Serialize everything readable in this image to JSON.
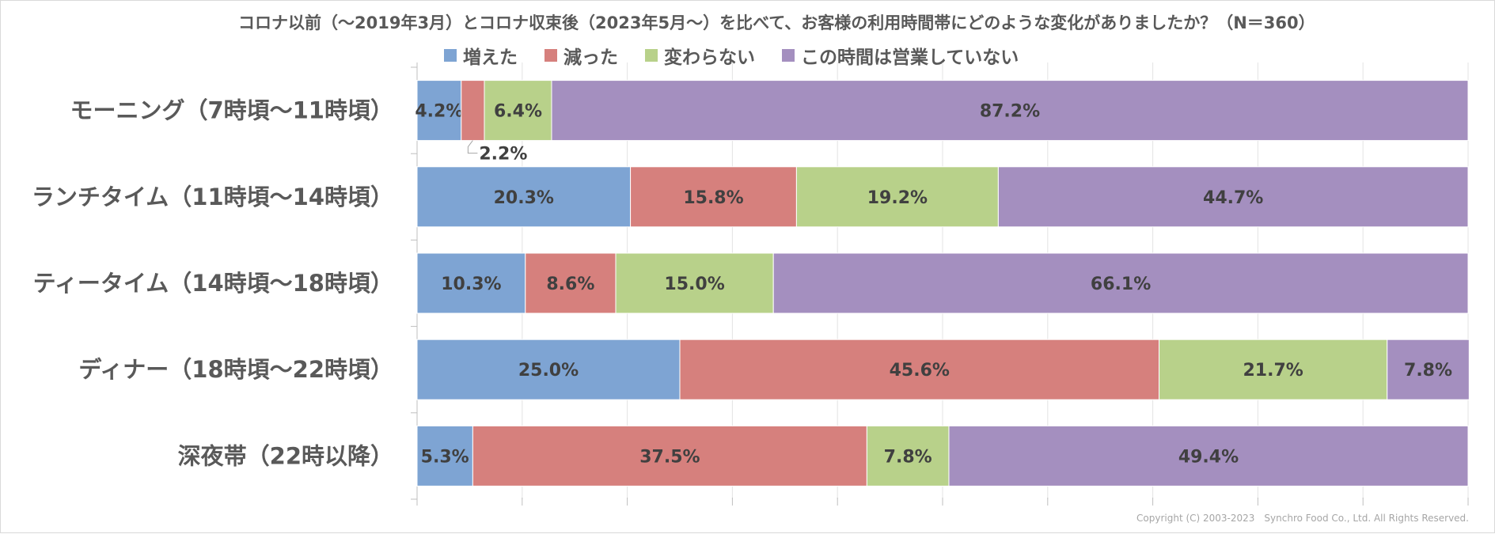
{
  "chart_data": {
    "type": "bar",
    "orientation": "horizontal",
    "stacked": true,
    "title": "コロナ以前（～2019年3月）とコロナ収束後（2023年5月～）を比べて、お客様の利用時間帯にどのような変化がありましたか？（N＝360）",
    "xlabel": "",
    "ylabel": "",
    "xlim": [
      0,
      100
    ],
    "grid": true,
    "legend_position": "top",
    "categories": [
      "モーニング（7時頃～11時頃）",
      "ランチタイム（11時頃～14時頃）",
      "ティータイム（14時頃～18時頃）",
      "ディナー（18時頃～22時頃）",
      "深夜帯（22時以降）"
    ],
    "series": [
      {
        "name": "増えた",
        "color": "#7ea4d3",
        "values": [
          4.2,
          20.3,
          10.3,
          25.0,
          5.3
        ],
        "labels": [
          "4.2%",
          "20.3%",
          "10.3%",
          "25.0%",
          "5.3%"
        ]
      },
      {
        "name": "減った",
        "color": "#d6807d",
        "values": [
          2.2,
          15.8,
          8.6,
          45.6,
          37.5
        ],
        "labels": [
          "2.2%",
          "15.8%",
          "8.6%",
          "45.6%",
          "37.5%"
        ]
      },
      {
        "name": "変わらない",
        "color": "#b8d18a",
        "values": [
          6.4,
          19.2,
          15.0,
          21.7,
          7.8
        ],
        "labels": [
          "6.4%",
          "19.2%",
          "15.0%",
          "21.7%",
          "7.8%"
        ]
      },
      {
        "name": "この時間は営業していない",
        "color": "#a48fbf",
        "values": [
          87.2,
          44.7,
          66.1,
          7.8,
          49.4
        ],
        "labels": [
          "87.2%",
          "44.7%",
          "66.1%",
          "7.8%",
          "49.4%"
        ]
      }
    ]
  },
  "footer": {
    "copyright": "Copyright (C) 2003-2023　Synchro Food Co., Ltd. All Rights Reserved."
  }
}
